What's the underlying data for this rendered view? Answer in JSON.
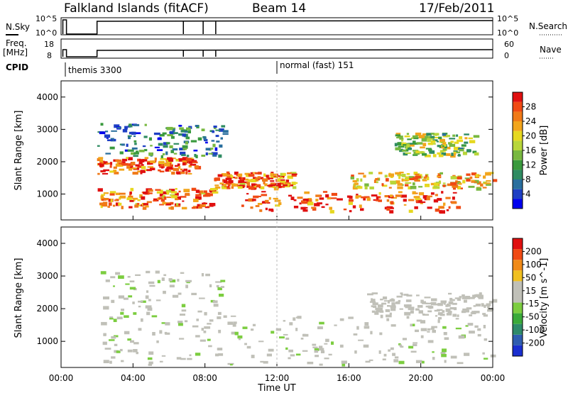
{
  "header": {
    "station": "Falkland Islands (fitACF)",
    "beam": "Beam 14",
    "date": "17/Feb/2011"
  },
  "status_panels": {
    "nsky_label": "N.Sky",
    "nsky_ticks": [
      "10^5",
      "10^0"
    ],
    "nsearch_label": "N.Search",
    "nsearch_ticks": [
      "10^5",
      "10^0"
    ],
    "freq_label": "Freq.",
    "freq_unit": "[MHz]",
    "freq_ticks": [
      "18",
      "8"
    ],
    "nave_label": "Nave",
    "nave_ticks": [
      "60",
      "0"
    ],
    "cpid_label": "CPID",
    "cpid_modes": [
      "themis 3300",
      "normal (fast) 151"
    ]
  },
  "chart_data": [
    {
      "type": "heatmap",
      "name": "power",
      "ylabel": "Slant Range [km]",
      "ytick_labels": [
        "1000",
        "2000",
        "3000",
        "4000"
      ],
      "ylim": [
        200,
        4500
      ],
      "xlim_hours": [
        0,
        24
      ],
      "colorbar_label": "Power [dB]",
      "colorbar_ticks": [
        "28",
        "24",
        "20",
        "16",
        "12",
        "8",
        "4"
      ],
      "colorbar_colors": [
        "#0000ee",
        "#1e3fc4",
        "#2a6f9e",
        "#2f8b62",
        "#3a9a3e",
        "#78b840",
        "#b8d63a",
        "#e6d820",
        "#f2a51c",
        "#f07a18",
        "#f04a14",
        "#e01010"
      ],
      "bands": [
        {
          "t0": 2.0,
          "t1": 7.5,
          "r0": 1650,
          "r1": 2150,
          "level": 26
        },
        {
          "t0": 2.0,
          "t1": 8.5,
          "r0": 600,
          "r1": 1200,
          "level": 24
        },
        {
          "t0": 8.5,
          "t1": 13.0,
          "r0": 1200,
          "r1": 1700,
          "level": 24
        },
        {
          "t0": 10.0,
          "t1": 22.0,
          "r0": 500,
          "r1": 1100,
          "level": 26
        },
        {
          "t0": 16.0,
          "t1": 24.0,
          "r0": 1200,
          "r1": 1700,
          "level": 20
        },
        {
          "t0": 2.0,
          "t1": 9.0,
          "r0": 2200,
          "r1": 3200,
          "level": 8
        },
        {
          "t0": 18.5,
          "t1": 23.0,
          "r0": 2200,
          "r1": 2900,
          "level": 14
        }
      ]
    },
    {
      "type": "heatmap",
      "name": "velocity",
      "ylabel": "Slant Range [km]",
      "ytick_labels": [
        "1000",
        "2000",
        "3000",
        "4000"
      ],
      "ylim": [
        200,
        4500
      ],
      "xlim_hours": [
        0,
        24
      ],
      "colorbar_label": "Velocity [m s^-1]",
      "colorbar_ticks": [
        "200",
        "100",
        "50",
        "15",
        "-15",
        "-50",
        "-100",
        "-200"
      ],
      "colorbar_colors": [
        "#1a2fd0",
        "#2f5db0",
        "#2e8a6a",
        "#3aaa3a",
        "#7ccd40",
        "#c0c0b8",
        "#c0c0b8",
        "#f0c020",
        "#f08a18",
        "#f04a14",
        "#e01010"
      ],
      "bands": [
        {
          "t0": 2.0,
          "t1": 9.0,
          "r0": 300,
          "r1": 3200,
          "level": 0
        },
        {
          "t0": 9.0,
          "t1": 24.0,
          "r0": 300,
          "r1": 1800,
          "level": 0
        },
        {
          "t0": 17.0,
          "t1": 24.0,
          "r0": 1800,
          "r1": 2500,
          "level": -20
        }
      ]
    }
  ],
  "xaxis": {
    "tick_labels": [
      "00:00",
      "04:00",
      "08:00",
      "12:00",
      "16:00",
      "20:00",
      "00:00"
    ],
    "label": "Time UT"
  }
}
